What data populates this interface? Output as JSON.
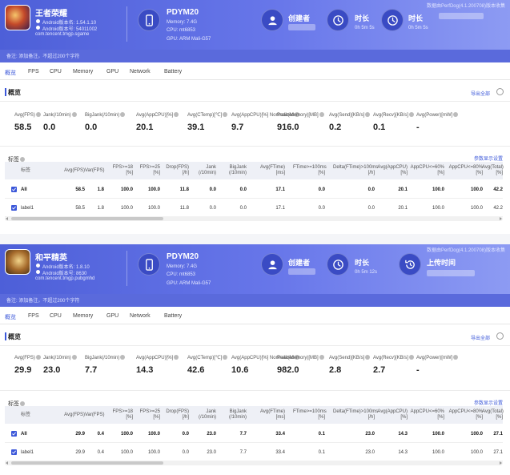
{
  "tabs": [
    "概览",
    "FPS",
    "CPU",
    "Memory",
    "GPU",
    "Network",
    "Battery"
  ],
  "section_title": "概览",
  "export_label": "导出全部",
  "tags_title": "标签",
  "column_settings": "参数显示设置",
  "remark_label": "备注: 添加备注，不超过200个字符",
  "colors": {
    "accent": "#3b57d9",
    "header": "#5566e0"
  },
  "metric_labels": [
    "Avg(FPS)",
    "Jank(/10min)",
    "BigJank(/10min)",
    "Avg(AppCPU)[%]",
    "Avg(CTemp)[℃]",
    "Avg(AppCPU)[%] Normalized",
    "Peak(Memory)[MB]",
    "Avg(Send)[KB/s]",
    "Avg(Recv)[KB/s]",
    "Avg(Power)[mW]"
  ],
  "table_headers": [
    "标签",
    "Avg(FPS)",
    "Var(FPS)",
    "FPS>=18 [%]",
    "FPS>=25 [%]",
    "Drop(FPS) [/h]",
    "Jank (/10min)",
    "BigJank (/10min)",
    "Avg(FTime) [ms]",
    "FTime>=100ms [%]",
    "Delta(FTime)>100ms [/h]",
    "Avg(AppCPU) [%]",
    "AppCPU<=60% [%]",
    "AppCPU<=80% [%]",
    "Avg(Total) [%]"
  ],
  "reports": [
    {
      "app_name": "王者荣耀",
      "android_version": "Android版本名: 1.54.1.10",
      "android_code": "Android版本号: 54011002",
      "package": "com.tencent.tmgp.sgame",
      "device": "PDYM20",
      "memory": "Memory: 7.4G",
      "cpu": "CPU: mt6853",
      "gpu": "GPU: ARM Mali-G57",
      "creator_title": "创建者",
      "duration_title": "时长",
      "duration_value": "0h 5m 5s",
      "third_title": "时长",
      "third_value": "0h 5m 5s",
      "watermark": "数据由PerfDog(4.1.200708)版本收集",
      "metrics": [
        "58.5",
        "0.0",
        "0.0",
        "20.1",
        "39.1",
        "9.7",
        "916.0",
        "0.2",
        "0.1",
        "-"
      ],
      "rows": [
        {
          "name": "All",
          "cells": [
            "58.5",
            "1.8",
            "100.0",
            "100.0",
            "11.8",
            "0.0",
            "0.0",
            "17.1",
            "0.0",
            "0.0",
            "20.1",
            "100.0",
            "100.0",
            "42.2"
          ]
        },
        {
          "name": "label1",
          "cells": [
            "58.5",
            "1.8",
            "100.0",
            "100.0",
            "11.8",
            "0.0",
            "0.0",
            "17.1",
            "0.0",
            "0.0",
            "20.1",
            "100.0",
            "100.0",
            "42.2"
          ]
        }
      ]
    },
    {
      "app_name": "和平精英",
      "android_version": "Android版本名: 1.8.10",
      "android_code": "Android版本号: 8630",
      "package": "com.tencent.tmgp.pubgmhd",
      "device": "PDYM20",
      "memory": "Memory: 7.4G",
      "cpu": "CPU: mt6853",
      "gpu": "GPU: ARM Mali-G57",
      "creator_title": "创建者",
      "duration_title": "时长",
      "duration_value": "0h 5m 12s",
      "third_title": "上传时间",
      "third_value": "",
      "watermark": "数据由PerfDog(4.1.200708)版本收集",
      "metrics": [
        "29.9",
        "23.0",
        "7.7",
        "14.3",
        "42.6",
        "10.6",
        "982.0",
        "2.8",
        "2.7",
        "-"
      ],
      "rows": [
        {
          "name": "All",
          "cells": [
            "29.9",
            "0.4",
            "100.0",
            "100.0",
            "0.0",
            "23.0",
            "7.7",
            "33.4",
            "0.1",
            "23.0",
            "14.3",
            "100.0",
            "100.0",
            "27.1"
          ]
        },
        {
          "name": "label1",
          "cells": [
            "29.9",
            "0.4",
            "100.0",
            "100.0",
            "0.0",
            "23.0",
            "7.7",
            "33.4",
            "0.1",
            "23.0",
            "14.3",
            "100.0",
            "100.0",
            "27.1"
          ]
        }
      ]
    }
  ]
}
